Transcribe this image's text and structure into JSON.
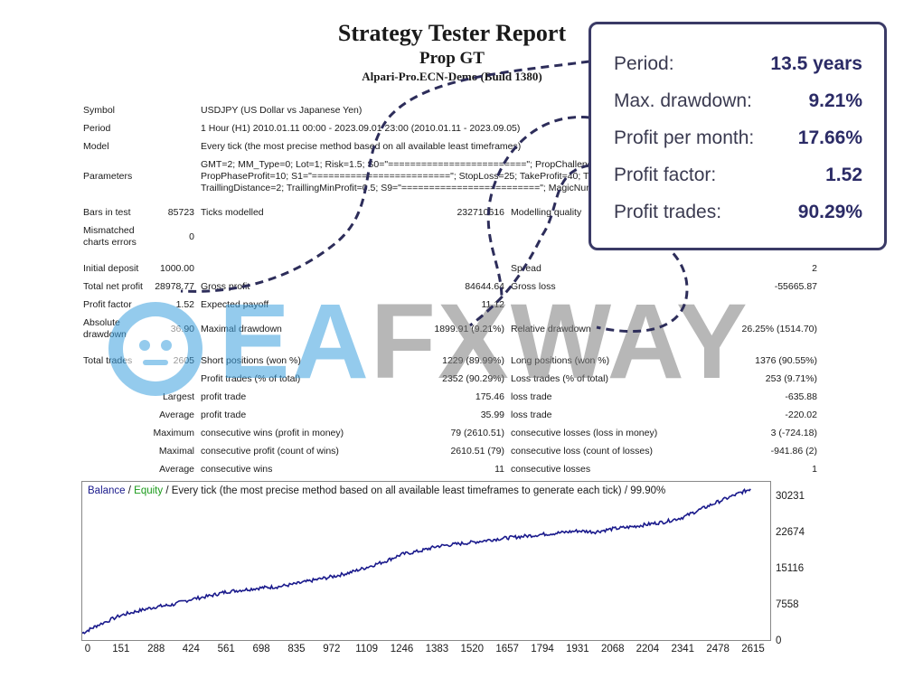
{
  "header": {
    "title": "Strategy Tester Report",
    "subtitle": "Prop GT",
    "server": "Alpari-Pro.ECN-Demo (Build 1380)"
  },
  "info": {
    "symbol_label": "Symbol",
    "symbol_value": "USDJPY (US Dollar vs Japanese Yen)",
    "period_label": "Period",
    "period_value": "1 Hour (H1) 2010.01.11 00:00 - 2023.09.01 23:00 (2010.01.11 - 2023.09.05)",
    "model_label": "Model",
    "model_value": "Every tick (the most precise method based on all available least timeframes)",
    "parameters_label": "Parameters",
    "parameters_lines": [
      "GMT=2; MM_Type=0; Lot=1; Risk=1.5; S0=\"=========================\"; PropChallenge=false; PropDailyDD=5; PropMaxDD=10;",
      "PropPhaseProfit=10; S1=\"=========================\"; StopLoss=25; TakeProfit=40; TraillingOn=true;",
      "TraillingDistance=2; TraillingMinProfit=0.5; S9=\"=========================\"; MagicNumber=9542033; __com=\"Prop GT\";"
    ],
    "bars_label": "Bars in test",
    "bars_value": "85723",
    "ticks_label": "Ticks modelled",
    "ticks_value": "232710616",
    "quality_label": "Modelling quality",
    "mismatched_label_1": "Mismatched",
    "mismatched_label_2": "charts errors",
    "mismatched_value": "0"
  },
  "stats": {
    "initial_deposit_label": "Initial deposit",
    "initial_deposit": "1000.00",
    "spread_label": "Spread",
    "spread": "2",
    "total_net_profit_label": "Total net profit",
    "total_net_profit": "28978.77",
    "gross_profit_label": "Gross profit",
    "gross_profit": "84644.64",
    "gross_loss_label": "Gross loss",
    "gross_loss": "-55665.87",
    "profit_factor_label": "Profit factor",
    "profit_factor": "1.52",
    "expected_payoff_label": "Expected payoff",
    "expected_payoff": "11.12",
    "absolute_dd_label_1": "Absolute",
    "absolute_dd_label_2": "drawdown",
    "absolute_dd": "36.90",
    "maximal_dd_label": "Maximal drawdown",
    "maximal_dd": "1899.91 (9.21%)",
    "relative_dd_label": "Relative drawdown",
    "relative_dd": "26.25% (1514.70)",
    "total_trades_label": "Total trades",
    "total_trades": "2605",
    "short_label": "Short positions (won %)",
    "short": "1229 (89.99%)",
    "long_label": "Long positions (won %)",
    "long": "1376 (90.55%)",
    "profit_trades_label": "Profit trades (% of total)",
    "profit_trades": "2352 (90.29%)",
    "loss_trades_label": "Loss trades (% of total)",
    "loss_trades": "253 (9.71%)",
    "largest_label": "Largest",
    "largest_profit_label": "profit trade",
    "largest_profit": "175.46",
    "largest_loss_label": "loss trade",
    "largest_loss": "-635.88",
    "average_label": "Average",
    "average_profit_label": "profit trade",
    "average_profit": "35.99",
    "average_loss_label": "loss trade",
    "average_loss": "-220.02",
    "maximum_label": "Maximum",
    "max_cons_wins_label": "consecutive wins (profit in money)",
    "max_cons_wins": "79 (2610.51)",
    "max_cons_losses_label": "consecutive losses (loss in money)",
    "max_cons_losses": "3 (-724.18)",
    "maximal_label": "Maximal",
    "maximal_cons_profit_label": "consecutive profit (count of wins)",
    "maximal_cons_profit": "2610.51 (79)",
    "maximal_cons_loss_label": "consecutive loss (count of losses)",
    "maximal_cons_loss": "-941.86 (2)",
    "average2_label": "Average",
    "avg_cons_wins_label": "consecutive wins",
    "avg_cons_wins": "11",
    "avg_cons_losses_label": "consecutive losses",
    "avg_cons_losses": "1"
  },
  "callout": {
    "period_label": "Period:",
    "period_value": "13.5 years",
    "drawdown_label": "Max. drawdown:",
    "drawdown_value": "9.21%",
    "ppm_label": "Profit per month:",
    "ppm_value": "17.66%",
    "pf_label": "Profit factor:",
    "pf_value": "1.52",
    "pt_label": "Profit trades:",
    "pt_value": "90.29%"
  },
  "watermark": {
    "ea": "EA",
    "fxway": "FXWAY"
  },
  "chart_title": {
    "balance": "Balance",
    "sep1": " / ",
    "equity": "Equity",
    "rest": " / Every tick (the most precise method based on all available least timeframes to generate each tick) / 99.90%"
  },
  "colors": {
    "balance": "#1a1a8c",
    "equity": "#1a9a1a",
    "callout_border": "#3a3a66",
    "watermark_blue": "#3ea2e0",
    "watermark_gray": "#7d7d7d"
  },
  "chart_data": {
    "type": "line",
    "title": "Balance / Equity / Every tick (the most precise method based on all available least timeframes to generate each tick) / 99.90%",
    "xlabel": "",
    "ylabel": "",
    "x_ticks": [
      "0",
      "151",
      "288",
      "424",
      "561",
      "698",
      "835",
      "972",
      "1109",
      "1246",
      "1383",
      "1520",
      "1657",
      "1794",
      "1931",
      "2068",
      "2204",
      "2341",
      "2478",
      "2615"
    ],
    "y_ticks": [
      "30231",
      "22674",
      "15116",
      "7558",
      "0"
    ],
    "xlim": [
      0,
      2682
    ],
    "ylim": [
      0,
      30231
    ],
    "series": [
      {
        "name": "Balance",
        "x": [
          0,
          60,
          151,
          220,
          288,
          350,
          424,
          500,
          561,
          630,
          698,
          760,
          835,
          900,
          972,
          1040,
          1109,
          1180,
          1246,
          1320,
          1383,
          1450,
          1520,
          1590,
          1657,
          1720,
          1794,
          1860,
          1931,
          2000,
          2068,
          2140,
          2204,
          2270,
          2341,
          2410,
          2478,
          2550,
          2605
        ],
        "y": [
          1000,
          2600,
          4600,
          5500,
          6300,
          6700,
          7800,
          8500,
          9300,
          9700,
          10100,
          10300,
          10900,
          11600,
          12300,
          13100,
          14200,
          15400,
          16800,
          17500,
          18400,
          18800,
          19200,
          19700,
          20100,
          20400,
          20800,
          21100,
          21500,
          21300,
          21900,
          22300,
          22800,
          23300,
          24200,
          25800,
          27300,
          28800,
          29900
        ]
      }
    ]
  }
}
